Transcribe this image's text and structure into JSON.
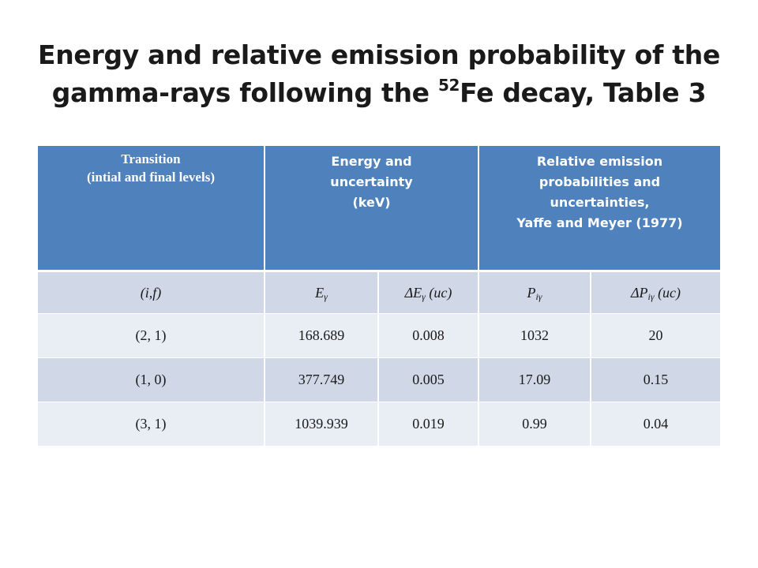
{
  "title": {
    "part1": "Energy and relative emission probability of the gamma-rays following the ",
    "superscript": "52",
    "part2": "Fe decay, Table 3"
  },
  "table": {
    "headers": [
      "Transition\n(intial and  final levels)",
      "Energy and\nuncertainty\n(keV)",
      "Relative emission\nprobabilities and\nuncertainties,\nYaffe and Meyer (1977)"
    ],
    "symbols": [
      {
        "main": "(i,f)",
        "sub": "",
        "tail": ""
      },
      {
        "main": "E",
        "sub": "γ",
        "tail": ""
      },
      {
        "main": "ΔE",
        "sub": "γ",
        "tail": " (uc)"
      },
      {
        "main": "P",
        "sub": "iγ",
        "tail": ""
      },
      {
        "main": "ΔP",
        "sub": "iγ",
        "tail": " (uc)"
      }
    ],
    "rows": [
      [
        "(2, 1)",
        "168.689",
        "0.008",
        "1032",
        "20"
      ],
      [
        "(1, 0)",
        "377.749",
        "0.005",
        "17.09",
        "0.15"
      ],
      [
        "(3, 1)",
        "1039.939",
        "0.019",
        "0.99",
        "0.04"
      ]
    ]
  },
  "colors": {
    "header_bg": "#4f81bd",
    "row_dark": "#d0d8e8",
    "row_light": "#e9edf4"
  }
}
